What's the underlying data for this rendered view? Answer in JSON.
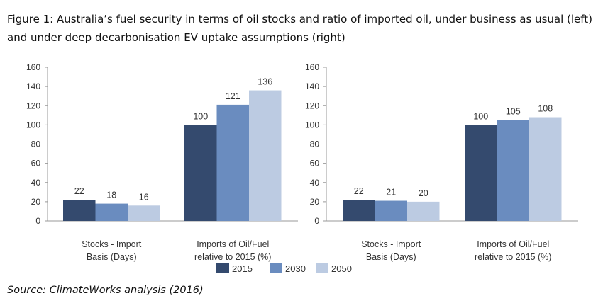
{
  "title": "Figure 1: Australia’s fuel security in terms of oil stocks and ratio of imported oil, under business as usual (left) and under deep decarbonisation EV uptake assumptions (right)",
  "source": "Source: ClimateWorks analysis (2016)",
  "legend": [
    {
      "name": "2015",
      "color": "#344a6e"
    },
    {
      "name": "2030",
      "color": "#6a8cbf"
    },
    {
      "name": "2050",
      "color": "#bccbe2"
    }
  ],
  "chart_data": [
    {
      "type": "bar",
      "title": "Business as usual",
      "categories": [
        "Stocks - Import|Basis (Days)",
        "Imports of Oil/Fuel|relative to 2015 (%)"
      ],
      "series": [
        {
          "name": "2015",
          "values": [
            22,
            100
          ]
        },
        {
          "name": "2030",
          "values": [
            18,
            121
          ]
        },
        {
          "name": "2050",
          "values": [
            16,
            136
          ]
        }
      ],
      "ylim": [
        0,
        160
      ],
      "yticks": [
        0,
        20,
        40,
        60,
        80,
        100,
        120,
        140,
        160
      ],
      "legend": "bottom"
    },
    {
      "type": "bar",
      "title": "Deep decarbonisation EV uptake",
      "categories": [
        "Stocks - Import|Basis (Days)",
        "Imports of Oil/Fuel|relative to 2015 (%)"
      ],
      "series": [
        {
          "name": "2015",
          "values": [
            22,
            100
          ]
        },
        {
          "name": "2030",
          "values": [
            21,
            105
          ]
        },
        {
          "name": "2050",
          "values": [
            20,
            108
          ]
        }
      ],
      "ylim": [
        0,
        160
      ],
      "yticks": [
        0,
        20,
        40,
        60,
        80,
        100,
        120,
        140,
        160
      ],
      "legend": "bottom"
    }
  ]
}
